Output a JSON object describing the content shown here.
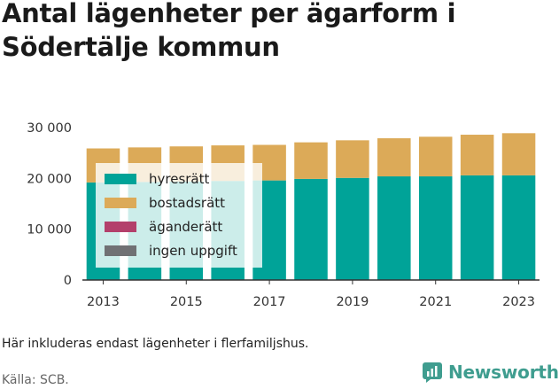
{
  "title": "Antal lägenheter per ägarform i Södertälje kommun",
  "footnote": "Här inkluderas endast lägenheter i flerfamiljshus.",
  "source": "Källa: SCB.",
  "brand": {
    "name": "Newsworthy",
    "icon": "newsworthy-logo-icon",
    "color": "#3f9d8f"
  },
  "chart_data": {
    "type": "bar",
    "stacked": true,
    "categories": [
      "2013",
      "2014",
      "2015",
      "2016",
      "2017",
      "2018",
      "2019",
      "2020",
      "2021",
      "2022",
      "2023"
    ],
    "x_tick_labels": [
      "2013",
      "2015",
      "2017",
      "2019",
      "2021",
      "2023"
    ],
    "y_tick_labels": [
      "0",
      "10 000",
      "20 000",
      "30 000"
    ],
    "ylim": [
      0,
      30000
    ],
    "y_ticks": [
      0,
      10000,
      20000,
      30000
    ],
    "grid": false,
    "legend_position": "top-left",
    "series": [
      {
        "name": "hyresrätt",
        "color": "#00a398",
        "values": [
          19200,
          19300,
          19400,
          19500,
          19600,
          19900,
          20100,
          20400,
          20400,
          20600,
          20600
        ]
      },
      {
        "name": "bostadsrätt",
        "color": "#dcaa58",
        "values": [
          6700,
          6800,
          6900,
          7000,
          7000,
          7200,
          7400,
          7500,
          7800,
          8000,
          8300
        ]
      },
      {
        "name": "äganderätt",
        "color": "#b3406b",
        "values": [
          0,
          0,
          0,
          0,
          0,
          0,
          0,
          0,
          0,
          0,
          0
        ]
      },
      {
        "name": "ingen uppgift",
        "color": "#707174",
        "values": [
          0,
          0,
          0,
          0,
          0,
          0,
          0,
          0,
          0,
          0,
          0
        ]
      }
    ]
  }
}
